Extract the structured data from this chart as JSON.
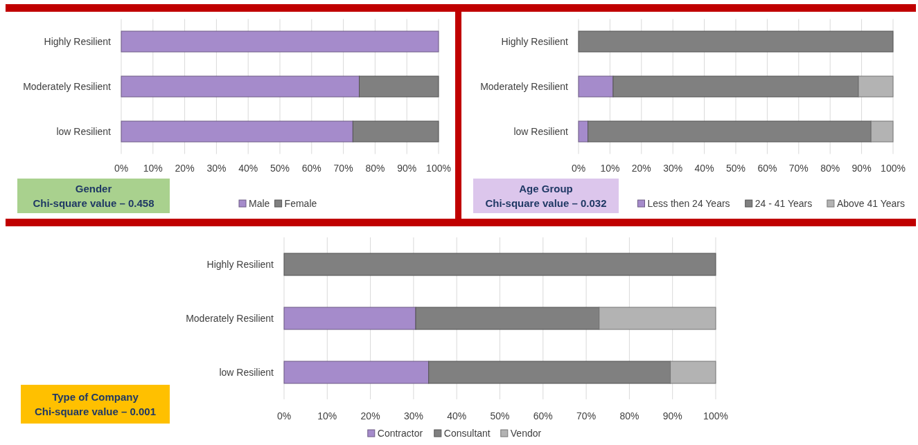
{
  "chart_data": [
    {
      "type": "bar",
      "orientation": "horizontal",
      "stacked": true,
      "categories": [
        "Highly Resilient",
        "Moderately Resilient",
        "low Resilient"
      ],
      "series": [
        {
          "name": "Male",
          "color": "#a58bcb",
          "values": [
            100,
            75,
            73
          ]
        },
        {
          "name": "Female",
          "color": "#808080",
          "values": [
            0,
            25,
            27
          ]
        }
      ],
      "xlim": [
        0,
        100
      ],
      "xticks": [
        {
          "value": 0,
          "label": "0%"
        },
        {
          "value": 10,
          "label": "10%"
        },
        {
          "value": 20,
          "label": "20%"
        },
        {
          "value": 30,
          "label": "30%"
        },
        {
          "value": 40,
          "label": "40%"
        },
        {
          "value": 50,
          "label": "50%"
        },
        {
          "value": 60,
          "label": "60%"
        },
        {
          "value": 70,
          "label": "70%"
        },
        {
          "value": 80,
          "label": "80%"
        },
        {
          "value": 90,
          "label": "90%"
        },
        {
          "value": 100,
          "label": "100%"
        }
      ],
      "grid": "x",
      "legend": "bottom",
      "annotations": [
        "Gender",
        "Chi-square value – 0.458"
      ]
    },
    {
      "type": "bar",
      "orientation": "horizontal",
      "stacked": true,
      "categories": [
        "Highly Resilient",
        "Moderately Resilient",
        "low Resilient"
      ],
      "series": [
        {
          "name": "Less then 24 Years",
          "color": "#a58bcb",
          "values": [
            0,
            11,
            3
          ]
        },
        {
          "name": "24 - 41 Years",
          "color": "#808080",
          "values": [
            100,
            78,
            90
          ]
        },
        {
          "name": "Above 41 Years",
          "color": "#b3b3b3",
          "values": [
            0,
            11,
            7
          ]
        }
      ],
      "xlim": [
        0,
        100
      ],
      "xticks": [
        {
          "value": 0,
          "label": "0%"
        },
        {
          "value": 10,
          "label": "10%"
        },
        {
          "value": 20,
          "label": "20%"
        },
        {
          "value": 30,
          "label": "30%"
        },
        {
          "value": 40,
          "label": "40%"
        },
        {
          "value": 50,
          "label": "50%"
        },
        {
          "value": 60,
          "label": "60%"
        },
        {
          "value": 70,
          "label": "70%"
        },
        {
          "value": 80,
          "label": "80%"
        },
        {
          "value": 90,
          "label": "90%"
        },
        {
          "value": 100,
          "label": "100%"
        }
      ],
      "grid": "x",
      "legend": "bottom",
      "annotations": [
        "Age Group",
        "Chi-square value – 0.032"
      ]
    },
    {
      "type": "bar",
      "orientation": "horizontal",
      "stacked": true,
      "categories": [
        "Highly Resilient",
        "Moderately Resilient",
        "low Resilient"
      ],
      "series": [
        {
          "name": "Contractor",
          "color": "#a58bcb",
          "values": [
            0,
            30.5,
            33.5
          ]
        },
        {
          "name": "Consultant",
          "color": "#808080",
          "values": [
            100,
            42.5,
            56
          ]
        },
        {
          "name": "Vendor",
          "color": "#b3b3b3",
          "values": [
            0,
            27,
            10.5
          ]
        }
      ],
      "xlim": [
        0,
        100
      ],
      "xticks": [
        {
          "value": 0,
          "label": "0%"
        },
        {
          "value": 10,
          "label": "10%"
        },
        {
          "value": 20,
          "label": "20%"
        },
        {
          "value": 30,
          "label": "30%"
        },
        {
          "value": 40,
          "label": "40%"
        },
        {
          "value": 50,
          "label": "50%"
        },
        {
          "value": 60,
          "label": "60%"
        },
        {
          "value": 70,
          "label": "70%"
        },
        {
          "value": 80,
          "label": "80%"
        },
        {
          "value": 90,
          "label": "90%"
        },
        {
          "value": 100,
          "label": "100%"
        }
      ],
      "grid": "x",
      "legend": "bottom",
      "annotations": [
        "Type of Company",
        "Chi-square value – 0.001"
      ]
    }
  ]
}
